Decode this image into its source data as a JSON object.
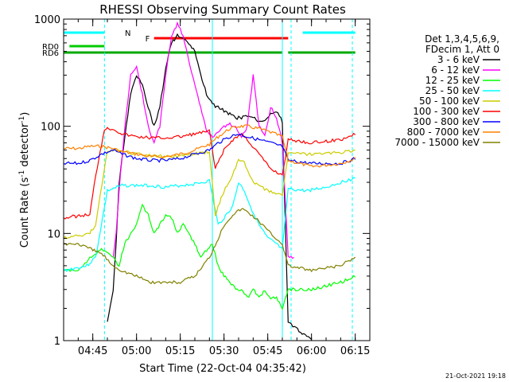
{
  "chart_data": {
    "type": "line",
    "title": "RHESSI Observing Summary Count Rates",
    "xlabel": "Start Time (22-Oct-04 04:35:42)",
    "ylabel_main": "Count Rate (s",
    "ylabel_sup1": "-1",
    "ylabel_mid": " detector",
    "ylabel_sup2": "-1",
    "ylabel_end": ")",
    "y_scale": "log",
    "ylim": [
      1,
      1000
    ],
    "xlim": [
      "04:35",
      "06:20"
    ],
    "x_ticks": [
      "04:45",
      "05:00",
      "05:15",
      "05:30",
      "05:45",
      "06:00",
      "06:15"
    ],
    "y_ticks": [
      {
        "value": 1,
        "label": "1"
      },
      {
        "value": 10,
        "label": "10"
      },
      {
        "value": 100,
        "label": "100"
      },
      {
        "value": 1000,
        "label": "1000"
      }
    ],
    "legend_header": [
      "Det 1,3,4,5,6,9,",
      "FDecim 1, Att 0"
    ],
    "legend_position": "right",
    "footer_date": "21-Oct-2021 19:18",
    "series": [
      {
        "name": "3 - 6 keV",
        "color": "#000000",
        "points": [
          [
            "04:50",
            1.5
          ],
          [
            "04:52",
            3
          ],
          [
            "04:53",
            8
          ],
          [
            "04:54",
            30
          ],
          [
            "04:56",
            80
          ],
          [
            "04:58",
            200
          ],
          [
            "05:00",
            300
          ],
          [
            "05:02",
            250
          ],
          [
            "05:04",
            150
          ],
          [
            "05:06",
            100
          ],
          [
            "05:08",
            150
          ],
          [
            "05:10",
            350
          ],
          [
            "05:12",
            600
          ],
          [
            "05:14",
            700
          ],
          [
            "05:16",
            650
          ],
          [
            "05:18",
            600
          ],
          [
            "05:20",
            500
          ],
          [
            "05:22",
            300
          ],
          [
            "05:24",
            200
          ],
          [
            "05:26",
            160
          ],
          [
            "05:28",
            150
          ],
          [
            "05:30",
            140
          ],
          [
            "05:32",
            130
          ],
          [
            "05:34",
            120
          ],
          [
            "05:36",
            120
          ],
          [
            "05:38",
            125
          ],
          [
            "05:40",
            120
          ],
          [
            "05:42",
            110
          ],
          [
            "05:44",
            115
          ],
          [
            "05:46",
            130
          ],
          [
            "05:48",
            140
          ],
          [
            "05:50",
            110
          ],
          [
            "05:52",
            1.5
          ],
          [
            "06:00",
            1
          ]
        ]
      },
      {
        "name": "6 - 12 keV",
        "color": "#ff00ff",
        "points": [
          [
            "04:52",
            6
          ],
          [
            "04:53",
            10
          ],
          [
            "04:54",
            25
          ],
          [
            "04:56",
            100
          ],
          [
            "04:58",
            300
          ],
          [
            "05:00",
            350
          ],
          [
            "05:02",
            200
          ],
          [
            "05:04",
            100
          ],
          [
            "05:06",
            70
          ],
          [
            "05:08",
            100
          ],
          [
            "05:10",
            300
          ],
          [
            "05:12",
            700
          ],
          [
            "05:14",
            900
          ],
          [
            "05:16",
            700
          ],
          [
            "05:18",
            400
          ],
          [
            "05:20",
            250
          ],
          [
            "05:22",
            150
          ],
          [
            "05:24",
            90
          ],
          [
            "05:26",
            80
          ],
          [
            "05:28",
            90
          ],
          [
            "05:30",
            100
          ],
          [
            "05:32",
            105
          ],
          [
            "05:34",
            100
          ],
          [
            "05:36",
            80
          ],
          [
            "05:38",
            100
          ],
          [
            "05:40",
            300
          ],
          [
            "05:42",
            100
          ],
          [
            "05:44",
            80
          ],
          [
            "05:46",
            150
          ],
          [
            "05:48",
            120
          ],
          [
            "05:50",
            70
          ],
          [
            "05:52",
            6
          ],
          [
            "05:54",
            6
          ]
        ]
      },
      {
        "name": "12 - 25 keV",
        "color": "#00ff00",
        "points": [
          [
            "04:35",
            4.5
          ],
          [
            "04:40",
            4.5
          ],
          [
            "04:44",
            6
          ],
          [
            "04:48",
            7
          ],
          [
            "04:52",
            6
          ],
          [
            "04:54",
            5
          ],
          [
            "04:56",
            8
          ],
          [
            "04:58",
            10
          ],
          [
            "05:00",
            12
          ],
          [
            "05:02",
            18
          ],
          [
            "05:04",
            15
          ],
          [
            "05:06",
            10
          ],
          [
            "05:08",
            12
          ],
          [
            "05:10",
            15
          ],
          [
            "05:12",
            14
          ],
          [
            "05:14",
            10
          ],
          [
            "05:16",
            12
          ],
          [
            "05:18",
            10
          ],
          [
            "05:20",
            8
          ],
          [
            "05:22",
            6
          ],
          [
            "05:24",
            7
          ],
          [
            "05:26",
            8
          ],
          [
            "05:28",
            5
          ],
          [
            "05:30",
            4
          ],
          [
            "05:32",
            3.5
          ],
          [
            "05:34",
            3
          ],
          [
            "05:36",
            3
          ],
          [
            "05:38",
            2.5
          ],
          [
            "05:40",
            3
          ],
          [
            "05:42",
            2.5
          ],
          [
            "05:44",
            3
          ],
          [
            "05:46",
            2.5
          ],
          [
            "05:48",
            2.5
          ],
          [
            "05:50",
            2
          ],
          [
            "05:52",
            3
          ],
          [
            "06:00",
            3
          ],
          [
            "06:10",
            3.5
          ],
          [
            "06:15",
            4
          ]
        ]
      },
      {
        "name": "25 - 50 keV",
        "color": "#00ffff",
        "points": [
          [
            "04:35",
            4.5
          ],
          [
            "04:43",
            5
          ],
          [
            "04:46",
            6
          ],
          [
            "04:50",
            25
          ],
          [
            "04:55",
            28
          ],
          [
            "05:00",
            28
          ],
          [
            "05:05",
            28
          ],
          [
            "05:10",
            27
          ],
          [
            "05:15",
            28
          ],
          [
            "05:20",
            29
          ],
          [
            "05:25",
            31
          ],
          [
            "05:28",
            12
          ],
          [
            "05:30",
            14
          ],
          [
            "05:33",
            18
          ],
          [
            "05:35",
            30
          ],
          [
            "05:37",
            25
          ],
          [
            "05:39",
            18
          ],
          [
            "05:42",
            12
          ],
          [
            "05:45",
            9
          ],
          [
            "05:48",
            8
          ],
          [
            "05:50",
            7
          ],
          [
            "05:52",
            26
          ],
          [
            "05:58",
            25
          ],
          [
            "06:05",
            27
          ],
          [
            "06:10",
            30
          ],
          [
            "06:15",
            33
          ]
        ]
      },
      {
        "name": "50 - 100 keV",
        "color": "#cccc00",
        "points": [
          [
            "04:35",
            9
          ],
          [
            "04:44",
            10
          ],
          [
            "04:46",
            12
          ],
          [
            "04:50",
            60
          ],
          [
            "04:55",
            58
          ],
          [
            "05:00",
            55
          ],
          [
            "05:05",
            53
          ],
          [
            "05:10",
            52
          ],
          [
            "05:15",
            53
          ],
          [
            "05:20",
            55
          ],
          [
            "05:25",
            58
          ],
          [
            "05:27",
            15
          ],
          [
            "05:30",
            25
          ],
          [
            "05:33",
            35
          ],
          [
            "05:35",
            50
          ],
          [
            "05:37",
            45
          ],
          [
            "05:40",
            30
          ],
          [
            "05:45",
            25
          ],
          [
            "05:50",
            23
          ],
          [
            "05:52",
            56
          ],
          [
            "06:00",
            55
          ],
          [
            "06:10",
            57
          ],
          [
            "06:15",
            60
          ]
        ]
      },
      {
        "name": "100 - 300 keV",
        "color": "#ff0000",
        "points": [
          [
            "04:35",
            14
          ],
          [
            "04:44",
            15
          ],
          [
            "04:46",
            35
          ],
          [
            "04:49",
            95
          ],
          [
            "04:52",
            95
          ],
          [
            "04:55",
            85
          ],
          [
            "05:00",
            80
          ],
          [
            "05:05",
            78
          ],
          [
            "05:10",
            78
          ],
          [
            "05:15",
            80
          ],
          [
            "05:20",
            85
          ],
          [
            "05:25",
            90
          ],
          [
            "05:27",
            40
          ],
          [
            "05:30",
            60
          ],
          [
            "05:33",
            75
          ],
          [
            "05:36",
            85
          ],
          [
            "05:38",
            75
          ],
          [
            "05:42",
            55
          ],
          [
            "05:46",
            40
          ],
          [
            "05:50",
            35
          ],
          [
            "05:52",
            75
          ],
          [
            "06:00",
            70
          ],
          [
            "06:10",
            75
          ],
          [
            "06:15",
            85
          ]
        ]
      },
      {
        "name": "300 - 800 keV",
        "color": "#0000ff",
        "points": [
          [
            "04:35",
            45
          ],
          [
            "04:40",
            45
          ],
          [
            "04:44",
            48
          ],
          [
            "04:48",
            55
          ],
          [
            "04:52",
            60
          ],
          [
            "04:55",
            55
          ],
          [
            "05:00",
            50
          ],
          [
            "05:05",
            48
          ],
          [
            "05:10",
            48
          ],
          [
            "05:15",
            50
          ],
          [
            "05:20",
            55
          ],
          [
            "05:25",
            60
          ],
          [
            "05:28",
            70
          ],
          [
            "05:32",
            80
          ],
          [
            "05:35",
            85
          ],
          [
            "05:38",
            80
          ],
          [
            "05:42",
            75
          ],
          [
            "05:46",
            70
          ],
          [
            "05:50",
            65
          ],
          [
            "05:52",
            48
          ],
          [
            "06:00",
            45
          ],
          [
            "06:10",
            45
          ],
          [
            "06:15",
            50
          ]
        ]
      },
      {
        "name": "800 - 7000 keV",
        "color": "#ff8000",
        "points": [
          [
            "04:35",
            62
          ],
          [
            "04:40",
            62
          ],
          [
            "04:44",
            65
          ],
          [
            "04:48",
            65
          ],
          [
            "04:52",
            62
          ],
          [
            "04:55",
            58
          ],
          [
            "05:00",
            55
          ],
          [
            "05:05",
            52
          ],
          [
            "05:10",
            52
          ],
          [
            "05:15",
            55
          ],
          [
            "05:20",
            60
          ],
          [
            "05:25",
            68
          ],
          [
            "05:28",
            80
          ],
          [
            "05:32",
            95
          ],
          [
            "05:35",
            100
          ],
          [
            "05:38",
            100
          ],
          [
            "05:42",
            95
          ],
          [
            "05:46",
            88
          ],
          [
            "05:50",
            80
          ],
          [
            "05:52",
            48
          ],
          [
            "06:00",
            42
          ],
          [
            "06:10",
            45
          ],
          [
            "06:15",
            50
          ]
        ]
      },
      {
        "name": "7000 - 15000 keV",
        "color": "#808000",
        "points": [
          [
            "04:35",
            8
          ],
          [
            "04:40",
            8
          ],
          [
            "04:45",
            7
          ],
          [
            "04:48",
            6.5
          ],
          [
            "04:52",
            5
          ],
          [
            "04:55",
            4.5
          ],
          [
            "05:00",
            4
          ],
          [
            "05:05",
            3.5
          ],
          [
            "05:10",
            3.5
          ],
          [
            "05:15",
            3.5
          ],
          [
            "05:20",
            4
          ],
          [
            "05:25",
            6
          ],
          [
            "05:28",
            9
          ],
          [
            "05:30",
            12
          ],
          [
            "05:33",
            15
          ],
          [
            "05:36",
            17
          ],
          [
            "05:38",
            16
          ],
          [
            "05:42",
            13
          ],
          [
            "05:46",
            10
          ],
          [
            "05:50",
            8
          ],
          [
            "05:52",
            5
          ],
          [
            "06:00",
            4.5
          ],
          [
            "06:10",
            5
          ],
          [
            "06:15",
            6
          ]
        ]
      }
    ],
    "flag_bars": [
      {
        "label": "N",
        "color": "#00ffff",
        "segments": [
          [
            "04:35",
            "04:49"
          ],
          [
            "05:57",
            "06:15"
          ]
        ]
      },
      {
        "label": "F",
        "color": "#ff0000",
        "segments": [
          [
            "05:06",
            "05:52"
          ]
        ]
      },
      {
        "label": "RD0",
        "color": "#00cc00",
        "segments": [
          [
            "04:37",
            "04:49"
          ]
        ]
      },
      {
        "label": "RD6",
        "color": "#00aa00",
        "segments": [
          [
            "04:35",
            "04:49"
          ],
          [
            "04:49",
            "05:26"
          ],
          [
            "05:26",
            "05:50"
          ],
          [
            "05:52",
            "06:15"
          ]
        ]
      }
    ],
    "vertical_markers": [
      {
        "time": "04:35",
        "color": "#00ffff",
        "style": "solid"
      },
      {
        "time": "04:49",
        "color": "#00ffff",
        "style": "dashed"
      },
      {
        "time": "05:26",
        "color": "#00ffff",
        "style": "solid"
      },
      {
        "time": "05:50",
        "color": "#00ffff",
        "style": "solid"
      },
      {
        "time": "05:53",
        "color": "#00ffff",
        "style": "dashed"
      },
      {
        "time": "06:14",
        "color": "#00ffff",
        "style": "dashed"
      }
    ]
  }
}
